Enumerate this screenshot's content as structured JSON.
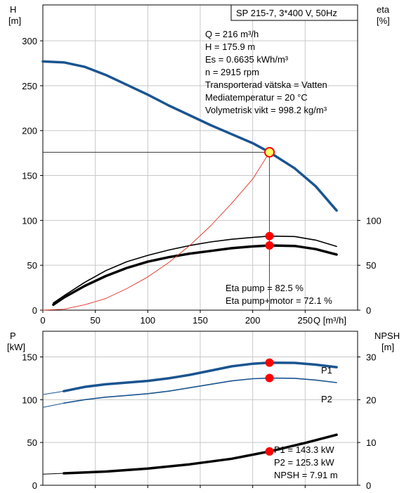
{
  "colors": {
    "head_curve": "#1a5490",
    "power_curve": "#1a5490",
    "efficiency_curve": "#000000",
    "system_curve": "#e03020",
    "operating_point": "#ff0000",
    "duty_point_fill": "#ffff66",
    "grid": "#c8c8c8",
    "label_blue": "#1a5490"
  },
  "chart_data": [
    {
      "type": "line",
      "id": "head-efficiency",
      "title": "SP 215-7, 3*400 V, 50Hz",
      "xlabel": "Q [m³/h]",
      "ylabel": "H",
      "ylabel_unit": "[m]",
      "y2label": "eta",
      "y2label_unit": "[%]",
      "xlim": [
        0,
        300
      ],
      "ylim": [
        0,
        340
      ],
      "y2lim": [
        0,
        340
      ],
      "grid": true,
      "x_ticks": [
        "0",
        "50",
        "100",
        "150",
        "200",
        "250"
      ],
      "y_ticks": [
        "0",
        "50",
        "100",
        "150",
        "200",
        "250",
        "300"
      ],
      "y2_ticks": [
        "0",
        "50",
        "100"
      ],
      "series": [
        {
          "key": "head",
          "axis": "left",
          "points": [
            [
              0,
              277
            ],
            [
              20,
              276
            ],
            [
              40,
              271
            ],
            [
              60,
              262
            ],
            [
              80,
              251
            ],
            [
              100,
              240
            ],
            [
              120,
              228
            ],
            [
              140,
              217
            ],
            [
              160,
              206
            ],
            [
              180,
              196
            ],
            [
              200,
              186
            ],
            [
              216,
              175.9
            ],
            [
              240,
              158
            ],
            [
              260,
              138
            ],
            [
              280,
              111
            ]
          ]
        },
        {
          "key": "head-extension",
          "axis": "left",
          "points": [
            [
              0,
              277
            ],
            [
              20,
              276
            ]
          ]
        },
        {
          "key": "eta-pump",
          "axis": "right",
          "points": [
            [
              10,
              8
            ],
            [
              20,
              16
            ],
            [
              40,
              31
            ],
            [
              60,
              44
            ],
            [
              80,
              54
            ],
            [
              100,
              61
            ],
            [
              120,
              67
            ],
            [
              140,
              72
            ],
            [
              160,
              76
            ],
            [
              180,
              79
            ],
            [
              200,
              81
            ],
            [
              216,
              82.5
            ],
            [
              240,
              82
            ],
            [
              260,
              78
            ],
            [
              280,
              71
            ]
          ]
        },
        {
          "key": "eta-pump-motor",
          "axis": "right",
          "points": [
            [
              10,
              6
            ],
            [
              20,
              14
            ],
            [
              40,
              27
            ],
            [
              60,
              38
            ],
            [
              80,
              47
            ],
            [
              100,
              54
            ],
            [
              120,
              59
            ],
            [
              140,
              63
            ],
            [
              160,
              66
            ],
            [
              180,
              69
            ],
            [
              200,
              71
            ],
            [
              216,
              72.1
            ],
            [
              240,
              71.5
            ],
            [
              260,
              68
            ],
            [
              280,
              62
            ]
          ]
        },
        {
          "key": "system-curve",
          "axis": "left",
          "points": [
            [
              0,
              0
            ],
            [
              20,
              1
            ],
            [
              40,
              6
            ],
            [
              60,
              13
            ],
            [
              80,
              24
            ],
            [
              100,
              37
            ],
            [
              120,
              53
            ],
            [
              140,
              72
            ],
            [
              160,
              94
            ],
            [
              180,
              119
            ],
            [
              200,
              146
            ],
            [
              216,
              175.9
            ]
          ]
        }
      ],
      "duty_point": {
        "x": 216,
        "y": 175.9
      },
      "points": [
        {
          "axis": "right",
          "x": 216,
          "y": 82.5
        },
        {
          "axis": "right",
          "x": 216,
          "y": 72.1
        }
      ],
      "info_lines": [
        "Q = 216 m³/h",
        "H = 175.9 m",
        "Es = 0.6635 kWh/m³",
        "n = 2915 rpm",
        "Transporterad vätska = Vatten",
        "Mediatemperatur = 20 °C",
        "Volymetrisk vikt = 998.2 kg/m³"
      ],
      "eta_lines": [
        "Eta pump = 82.5 %",
        "Eta pump+motor = 72.1 %"
      ]
    },
    {
      "type": "line",
      "id": "power-npsh",
      "ylabel": "P",
      "ylabel_unit": "[kW]",
      "y2label": "NPSH",
      "y2label_unit": "[m]",
      "xlim": [
        0,
        300
      ],
      "ylim": [
        0,
        180
      ],
      "y2lim": [
        0,
        36
      ],
      "grid": true,
      "y_ticks": [
        "0",
        "50",
        "100",
        "150"
      ],
      "y2_ticks": [
        "0",
        "10",
        "20",
        "30"
      ],
      "series": [
        {
          "key": "P1",
          "name": "P1",
          "axis": "left",
          "points": [
            [
              20,
              110
            ],
            [
              40,
              115
            ],
            [
              60,
              118
            ],
            [
              80,
              120
            ],
            [
              100,
              122
            ],
            [
              120,
              125
            ],
            [
              140,
              129
            ],
            [
              160,
              134
            ],
            [
              180,
              139
            ],
            [
              200,
              142
            ],
            [
              216,
              143.3
            ],
            [
              240,
              143
            ],
            [
              260,
              141
            ],
            [
              280,
              138
            ]
          ]
        },
        {
          "key": "P1-extension",
          "axis": "left",
          "points": [
            [
              0,
              106
            ],
            [
              20,
              110
            ]
          ]
        },
        {
          "key": "P2",
          "name": "P2",
          "axis": "left",
          "points": [
            [
              20,
              96
            ],
            [
              40,
              100
            ],
            [
              60,
              103
            ],
            [
              80,
              105
            ],
            [
              100,
              107
            ],
            [
              120,
              110
            ],
            [
              140,
              114
            ],
            [
              160,
              118
            ],
            [
              180,
              122
            ],
            [
              200,
              124.5
            ],
            [
              216,
              125.3
            ],
            [
              240,
              125
            ],
            [
              260,
              123
            ],
            [
              280,
              120
            ]
          ]
        },
        {
          "key": "P2-extension",
          "axis": "left",
          "points": [
            [
              0,
              91
            ],
            [
              20,
              96
            ]
          ]
        },
        {
          "key": "NPSH",
          "axis": "right",
          "points": [
            [
              20,
              2.8
            ],
            [
              60,
              3.2
            ],
            [
              100,
              3.9
            ],
            [
              140,
              4.9
            ],
            [
              180,
              6.2
            ],
            [
              216,
              7.91
            ],
            [
              250,
              9.9
            ],
            [
              280,
              11.8
            ]
          ]
        },
        {
          "key": "NPSH-extension",
          "axis": "right",
          "points": [
            [
              0,
              2.6
            ],
            [
              20,
              2.8
            ]
          ]
        }
      ],
      "points": [
        {
          "axis": "left",
          "x": 216,
          "y": 143.3
        },
        {
          "axis": "left",
          "x": 216,
          "y": 125.3
        },
        {
          "axis": "right",
          "x": 216,
          "y": 7.91
        }
      ],
      "info_lines": [
        "P1 = 143.3 kW",
        "P2 = 125.3 kW",
        "NPSH = 7.91 m"
      ]
    }
  ]
}
